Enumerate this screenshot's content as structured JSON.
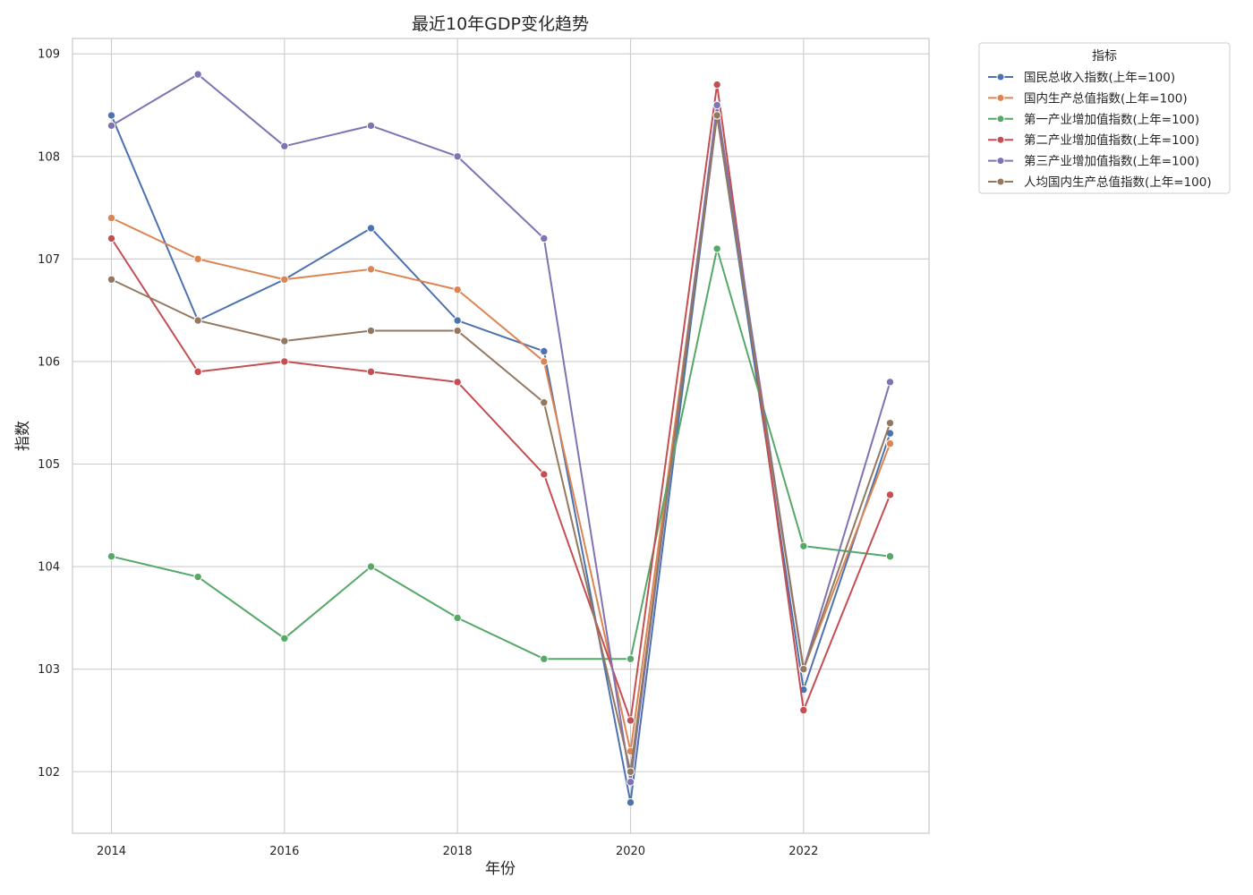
{
  "chart_data": {
    "type": "line",
    "title": "最近10年GDP变化趋势",
    "xlabel": "年份",
    "ylabel": "指数",
    "x": [
      2014,
      2015,
      2016,
      2017,
      2018,
      2019,
      2020,
      2021,
      2022,
      2023
    ],
    "xticks": [
      "2014",
      "2016",
      "2018",
      "2020",
      "2022"
    ],
    "yticks": [
      "102",
      "103",
      "104",
      "105",
      "106",
      "107",
      "108",
      "109"
    ],
    "xlim": [
      2013.55,
      2023.45
    ],
    "ylim": [
      101.4,
      109.15
    ],
    "grid": true,
    "legend_title": "指标",
    "legend_position": "outside upper right",
    "series": [
      {
        "name": "国民总收入指数(上年=100)",
        "color": "#4c72b0",
        "values": [
          108.4,
          106.4,
          106.8,
          107.3,
          106.4,
          106.1,
          101.7,
          108.4,
          102.8,
          105.3
        ]
      },
      {
        "name": "国内生产总值指数(上年=100)",
        "color": "#dd8452",
        "values": [
          107.4,
          107.0,
          106.8,
          106.9,
          106.7,
          106.0,
          102.2,
          108.4,
          103.0,
          105.2
        ]
      },
      {
        "name": "第一产业增加值指数(上年=100)",
        "color": "#55a868",
        "values": [
          104.1,
          103.9,
          103.3,
          104.0,
          103.5,
          103.1,
          103.1,
          107.1,
          104.2,
          104.1
        ]
      },
      {
        "name": "第二产业增加值指数(上年=100)",
        "color": "#c44e52",
        "values": [
          107.2,
          105.9,
          106.0,
          105.9,
          105.8,
          104.9,
          102.5,
          108.7,
          102.6,
          104.7
        ]
      },
      {
        "name": "第三产业增加值指数(上年=100)",
        "color": "#8172b3",
        "values": [
          108.3,
          108.8,
          108.1,
          108.3,
          108.0,
          107.2,
          101.9,
          108.5,
          103.0,
          105.8
        ]
      },
      {
        "name": "人均国内生产总值指数(上年=100)",
        "color": "#937860",
        "values": [
          106.8,
          106.4,
          106.2,
          106.3,
          106.3,
          105.6,
          102.0,
          108.4,
          103.0,
          105.4
        ]
      }
    ]
  }
}
